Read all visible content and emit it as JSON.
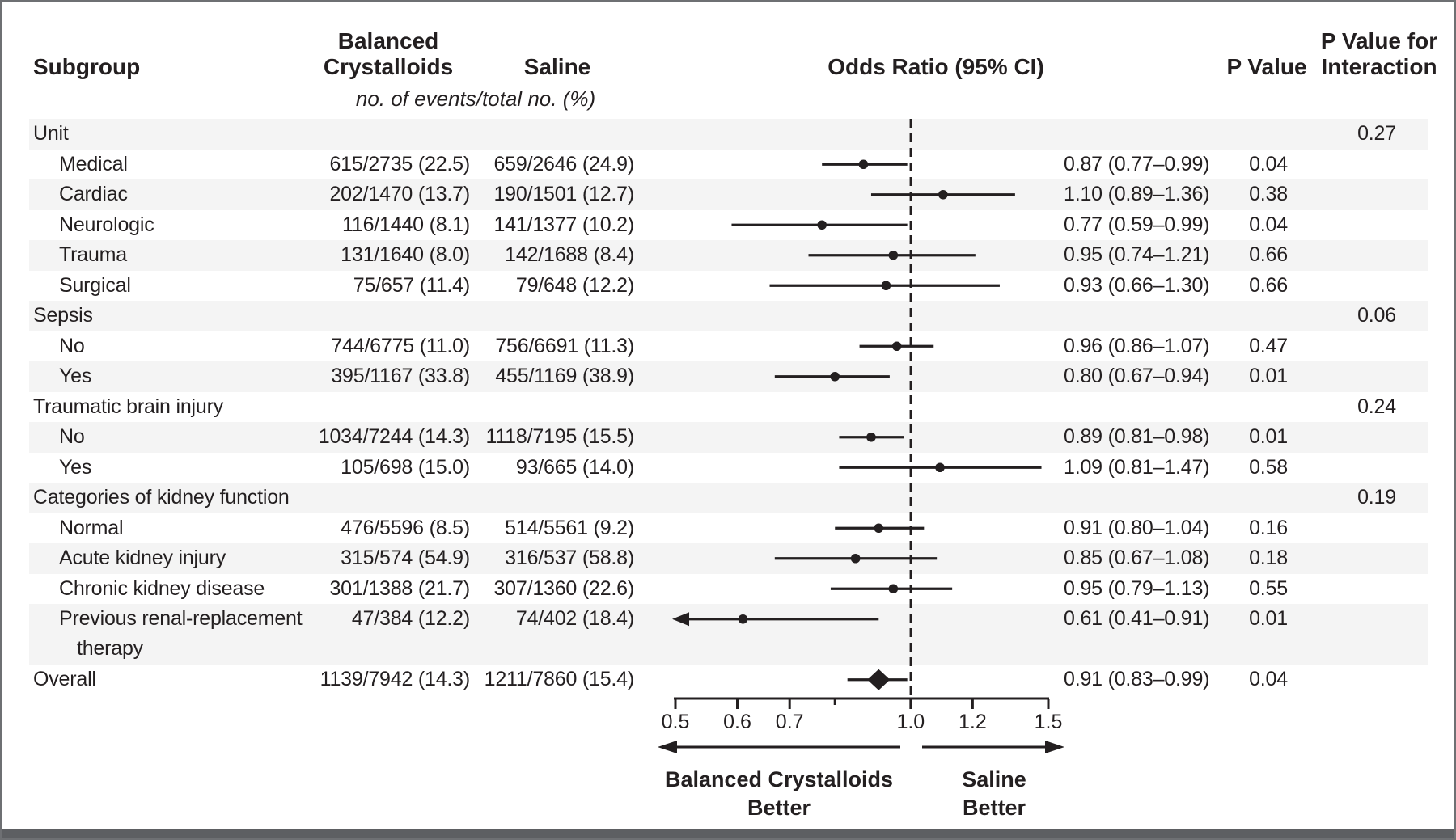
{
  "header": {
    "col_subgroup": "Subgroup",
    "col_balanced_line1": "Balanced",
    "col_balanced_line2": "Crystalloids",
    "col_saline": "Saline",
    "subtitle": "no. of events/total no. (%)",
    "col_or": "Odds Ratio (95% CI)",
    "col_p": "P Value",
    "col_pint_line1": "P Value for",
    "col_pint_line2": "Interaction"
  },
  "colors": {
    "text": "#231f20",
    "band": "#f4f4f4",
    "white_row": "#ffffff",
    "marker": "#231f20",
    "border": "#6e7073",
    "bottom_bar": "#5d5f62"
  },
  "chart_data": {
    "type": "forest",
    "x_scale": "log",
    "axis": {
      "min": 0.5,
      "max": 1.5,
      "reference": 1.0,
      "ticks": [
        {
          "v": 0.5,
          "label": "0.5"
        },
        {
          "v": 0.6,
          "label": "0.6"
        },
        {
          "v": 0.7,
          "label": "0.7"
        },
        {
          "v": 0.8,
          "label": ""
        },
        {
          "v": 1.0,
          "label": "1.0"
        },
        {
          "v": 1.2,
          "label": "1.2"
        },
        {
          "v": 1.5,
          "label": "1.5"
        }
      ]
    },
    "annotations": {
      "left_line1": "Balanced Crystalloids",
      "left_line2": "Better",
      "right_line1": "Saline",
      "right_line2": "Better"
    },
    "rows": [
      {
        "type": "section",
        "label": "Unit",
        "p_interaction": "0.27"
      },
      {
        "type": "item",
        "label": "Medical",
        "balanced": "615/2735 (22.5)",
        "saline": "659/2646 (24.9)",
        "or": 0.87,
        "ci_low": 0.77,
        "ci_high": 0.99,
        "or_ci_text": "0.87 (0.77–0.99)",
        "p_value": "0.04"
      },
      {
        "type": "item",
        "label": "Cardiac",
        "balanced": "202/1470 (13.7)",
        "saline": "190/1501 (12.7)",
        "or": 1.1,
        "ci_low": 0.89,
        "ci_high": 1.36,
        "or_ci_text": "1.10 (0.89–1.36)",
        "p_value": "0.38"
      },
      {
        "type": "item",
        "label": "Neurologic",
        "balanced": "116/1440 (8.1)",
        "saline": "141/1377 (10.2)",
        "or": 0.77,
        "ci_low": 0.59,
        "ci_high": 0.99,
        "or_ci_text": "0.77 (0.59–0.99)",
        "p_value": "0.04"
      },
      {
        "type": "item",
        "label": "Trauma",
        "balanced": "131/1640 (8.0)",
        "saline": "142/1688 (8.4)",
        "or": 0.95,
        "ci_low": 0.74,
        "ci_high": 1.21,
        "or_ci_text": "0.95 (0.74–1.21)",
        "p_value": "0.66"
      },
      {
        "type": "item",
        "label": "Surgical",
        "balanced": "75/657 (11.4)",
        "saline": "79/648 (12.2)",
        "or": 0.93,
        "ci_low": 0.66,
        "ci_high": 1.3,
        "or_ci_text": "0.93 (0.66–1.30)",
        "p_value": "0.66"
      },
      {
        "type": "section",
        "label": "Sepsis",
        "p_interaction": "0.06"
      },
      {
        "type": "item",
        "label": "No",
        "balanced": "744/6775 (11.0)",
        "saline": "756/6691 (11.3)",
        "or": 0.96,
        "ci_low": 0.86,
        "ci_high": 1.07,
        "or_ci_text": "0.96 (0.86–1.07)",
        "p_value": "0.47"
      },
      {
        "type": "item",
        "label": "Yes",
        "balanced": "395/1167 (33.8)",
        "saline": "455/1169 (38.9)",
        "or": 0.8,
        "ci_low": 0.67,
        "ci_high": 0.94,
        "or_ci_text": "0.80 (0.67–0.94)",
        "p_value": "0.01"
      },
      {
        "type": "section",
        "label": "Traumatic brain injury",
        "p_interaction": "0.24"
      },
      {
        "type": "item",
        "label": "No",
        "balanced": "1034/7244 (14.3)",
        "saline": "1118/7195 (15.5)",
        "or": 0.89,
        "ci_low": 0.81,
        "ci_high": 0.98,
        "or_ci_text": "0.89 (0.81–0.98)",
        "p_value": "0.01"
      },
      {
        "type": "item",
        "label": "Yes",
        "balanced": "105/698 (15.0)",
        "saline": "93/665 (14.0)",
        "or": 1.09,
        "ci_low": 0.81,
        "ci_high": 1.47,
        "or_ci_text": "1.09 (0.81–1.47)",
        "p_value": "0.58"
      },
      {
        "type": "section",
        "label": "Categories of kidney function",
        "p_interaction": "0.19"
      },
      {
        "type": "item",
        "label": "Normal",
        "balanced": "476/5596 (8.5)",
        "saline": "514/5561 (9.2)",
        "or": 0.91,
        "ci_low": 0.8,
        "ci_high": 1.04,
        "or_ci_text": "0.91 (0.80–1.04)",
        "p_value": "0.16"
      },
      {
        "type": "item",
        "label": "Acute kidney injury",
        "balanced": "315/574 (54.9)",
        "saline": "316/537 (58.8)",
        "or": 0.85,
        "ci_low": 0.67,
        "ci_high": 1.08,
        "or_ci_text": "0.85 (0.67–1.08)",
        "p_value": "0.18"
      },
      {
        "type": "item",
        "label": "Chronic kidney disease",
        "balanced": "301/1388 (21.7)",
        "saline": "307/1360 (22.6)",
        "or": 0.95,
        "ci_low": 0.79,
        "ci_high": 1.13,
        "or_ci_text": "0.95 (0.79–1.13)",
        "p_value": "0.55"
      },
      {
        "type": "item",
        "label": "Previous renal-replacement",
        "label_line2": "therapy",
        "double_height": true,
        "ci_low_clipped": true,
        "balanced": "47/384 (12.2)",
        "saline": "74/402 (18.4)",
        "or": 0.61,
        "ci_low": 0.41,
        "ci_high": 0.91,
        "or_ci_text": "0.61 (0.41–0.91)",
        "p_value": "0.01"
      },
      {
        "type": "overall",
        "label": "Overall",
        "marker": "diamond",
        "balanced": "1139/7942 (14.3)",
        "saline": "1211/7860 (15.4)",
        "or": 0.91,
        "ci_low": 0.83,
        "ci_high": 0.99,
        "or_ci_text": "0.91 (0.83–0.99)",
        "p_value": "0.04"
      }
    ]
  }
}
